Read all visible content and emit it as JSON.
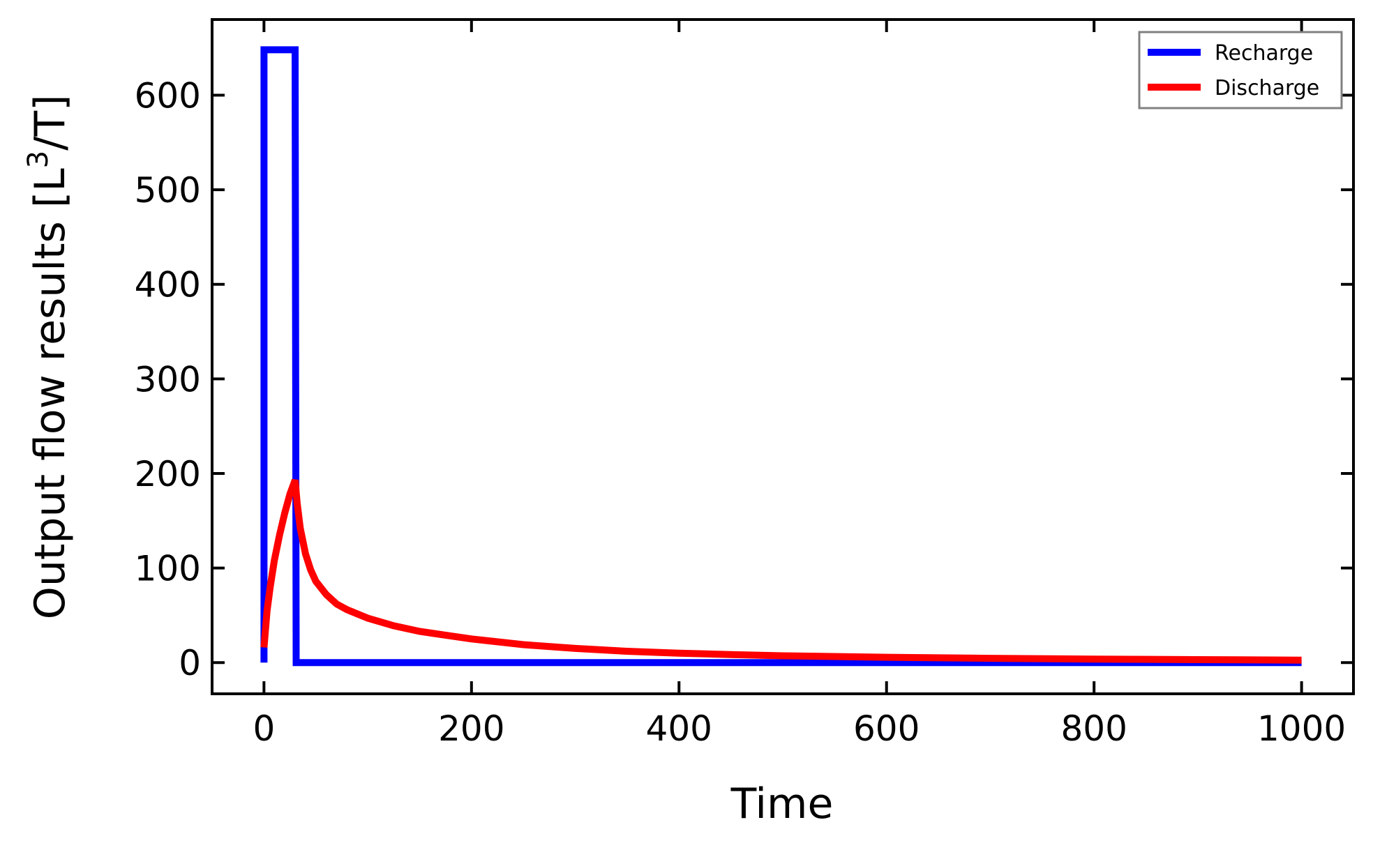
{
  "chart_data": {
    "type": "line",
    "xlabel": "Time",
    "ylabel": "Output flow results [L",
    "ylabel_sup": "3",
    "ylabel_tail": "/T]",
    "xlim": [
      -50,
      1050
    ],
    "ylim": [
      -33,
      680
    ],
    "xticks": [
      0,
      200,
      400,
      600,
      800,
      1000
    ],
    "yticks": [
      0,
      100,
      200,
      300,
      400,
      500,
      600
    ],
    "grid": false,
    "legend_position": "top-right",
    "series": [
      {
        "name": "Recharge",
        "color": "#0000ff",
        "points": [
          [
            0,
            0
          ],
          [
            0,
            648
          ],
          [
            30,
            648
          ],
          [
            31,
            0
          ],
          [
            1000,
            0
          ]
        ]
      },
      {
        "name": "Discharge",
        "color": "#ff0000",
        "points": [
          [
            0,
            16
          ],
          [
            3,
            55
          ],
          [
            6,
            80
          ],
          [
            10,
            108
          ],
          [
            15,
            135
          ],
          [
            20,
            158
          ],
          [
            25,
            178
          ],
          [
            30,
            193
          ],
          [
            32,
            168
          ],
          [
            35,
            142
          ],
          [
            40,
            115
          ],
          [
            45,
            98
          ],
          [
            50,
            86
          ],
          [
            60,
            72
          ],
          [
            70,
            62
          ],
          [
            80,
            56
          ],
          [
            100,
            47
          ],
          [
            125,
            39
          ],
          [
            150,
            33
          ],
          [
            175,
            29
          ],
          [
            200,
            25
          ],
          [
            250,
            19
          ],
          [
            300,
            15
          ],
          [
            350,
            12
          ],
          [
            400,
            10
          ],
          [
            450,
            8.5
          ],
          [
            500,
            7.2
          ],
          [
            600,
            5.6
          ],
          [
            700,
            4.5
          ],
          [
            800,
            3.7
          ],
          [
            900,
            3.1
          ],
          [
            1000,
            2.6
          ]
        ]
      }
    ]
  }
}
